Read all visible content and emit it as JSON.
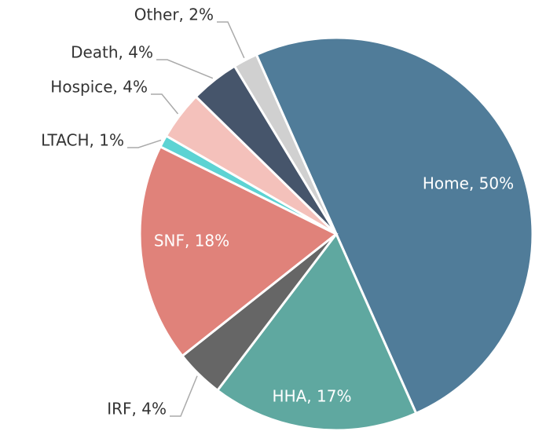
{
  "chart_data": {
    "type": "pie",
    "values": [
      50,
      17,
      4,
      18,
      1,
      4,
      4,
      2
    ],
    "value_labels": [
      "Home, 50%",
      "HHA, 17%",
      "IRF, 4%",
      "SNF, 18%",
      "LTACH, 1%",
      "Hospice, 4%",
      "Death, 4%",
      "Other, 2%"
    ],
    "colors": [
      "#507c99",
      "#5fa8a0",
      "#666666",
      "#e0827a",
      "#5dd3d3",
      "#f4c1bb",
      "#46556b",
      "#d0d0d0"
    ]
  }
}
